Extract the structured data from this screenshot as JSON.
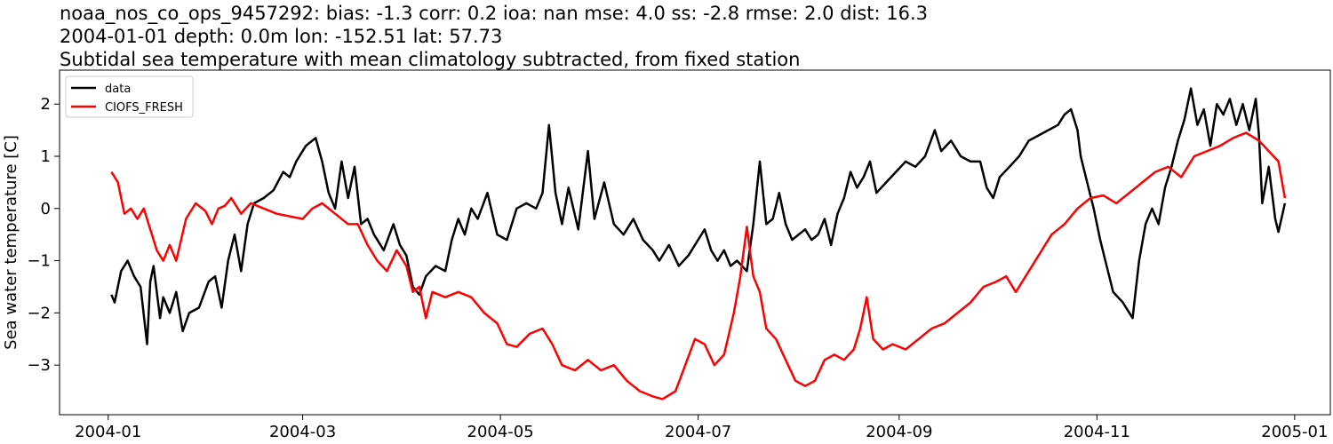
{
  "chart_data": {
    "type": "line",
    "title_lines": [
      "noaa_nos_co_ops_9457292: bias: -1.3  corr: 0.2  ioa: nan  mse: 4.0  ss: -2.8  rmse: 2.0  dist: 16.3",
      "2004-01-01 depth: 0.0m lon: -152.51 lat: 57.73",
      "Subtidal sea temperature with mean climatology subtracted, from fixed station"
    ],
    "xlabel": "",
    "ylabel": "Sea water temperature [C]",
    "xlim": [
      "2003-12-17",
      "2005-01-12"
    ],
    "ylim": [
      -3.95,
      2.65
    ],
    "xticks": [
      "2004-01",
      "2004-03",
      "2004-05",
      "2004-07",
      "2004-09",
      "2004-11",
      "2005-01"
    ],
    "yticks": [
      2,
      1,
      0,
      -1,
      -2,
      -3
    ],
    "ytick_labels": [
      "2",
      "1",
      "0",
      "−1",
      "−2",
      "−3"
    ],
    "legend_position": "top-left",
    "grid": false,
    "series": [
      {
        "name": "data",
        "color": "#000000",
        "points": [
          [
            "2004-01-02",
            -1.65
          ],
          [
            "2004-01-03",
            -1.8
          ],
          [
            "2004-01-05",
            -1.2
          ],
          [
            "2004-01-07",
            -1.0
          ],
          [
            "2004-01-09",
            -1.3
          ],
          [
            "2004-01-11",
            -1.5
          ],
          [
            "2004-01-13",
            -2.6
          ],
          [
            "2004-01-14",
            -1.4
          ],
          [
            "2004-01-15",
            -1.1
          ],
          [
            "2004-01-17",
            -2.1
          ],
          [
            "2004-01-18",
            -1.7
          ],
          [
            "2004-01-20",
            -2.0
          ],
          [
            "2004-01-22",
            -1.6
          ],
          [
            "2004-01-24",
            -2.35
          ],
          [
            "2004-01-26",
            -2.0
          ],
          [
            "2004-01-29",
            -1.9
          ],
          [
            "2004-02-01",
            -1.4
          ],
          [
            "2004-02-03",
            -1.3
          ],
          [
            "2004-02-05",
            -1.9
          ],
          [
            "2004-02-07",
            -1.0
          ],
          [
            "2004-02-09",
            -0.5
          ],
          [
            "2004-02-11",
            -1.2
          ],
          [
            "2004-02-13",
            -0.3
          ],
          [
            "2004-02-15",
            0.1
          ],
          [
            "2004-02-18",
            0.2
          ],
          [
            "2004-02-21",
            0.35
          ],
          [
            "2004-02-24",
            0.7
          ],
          [
            "2004-02-26",
            0.6
          ],
          [
            "2004-02-28",
            0.9
          ],
          [
            "2004-03-02",
            1.2
          ],
          [
            "2004-03-05",
            1.35
          ],
          [
            "2004-03-07",
            0.9
          ],
          [
            "2004-03-09",
            0.3
          ],
          [
            "2004-03-11",
            0.0
          ],
          [
            "2004-03-13",
            0.9
          ],
          [
            "2004-03-15",
            0.2
          ],
          [
            "2004-03-17",
            0.8
          ],
          [
            "2004-03-19",
            -0.3
          ],
          [
            "2004-03-21",
            -0.2
          ],
          [
            "2004-03-23",
            -0.5
          ],
          [
            "2004-03-26",
            -0.8
          ],
          [
            "2004-03-29",
            -0.3
          ],
          [
            "2004-03-31",
            -0.7
          ],
          [
            "2004-04-02",
            -0.9
          ],
          [
            "2004-04-04",
            -1.5
          ],
          [
            "2004-04-06",
            -1.65
          ],
          [
            "2004-04-08",
            -1.3
          ],
          [
            "2004-04-11",
            -1.1
          ],
          [
            "2004-04-14",
            -1.2
          ],
          [
            "2004-04-16",
            -0.6
          ],
          [
            "2004-04-18",
            -0.2
          ],
          [
            "2004-04-20",
            -0.5
          ],
          [
            "2004-04-22",
            0.0
          ],
          [
            "2004-04-24",
            -0.2
          ],
          [
            "2004-04-27",
            0.3
          ],
          [
            "2004-04-30",
            -0.5
          ],
          [
            "2004-05-03",
            -0.6
          ],
          [
            "2004-05-06",
            0.0
          ],
          [
            "2004-05-09",
            0.1
          ],
          [
            "2004-05-12",
            0.0
          ],
          [
            "2004-05-14",
            0.3
          ],
          [
            "2004-05-16",
            1.6
          ],
          [
            "2004-05-18",
            0.3
          ],
          [
            "2004-05-20",
            -0.3
          ],
          [
            "2004-05-22",
            0.4
          ],
          [
            "2004-05-25",
            -0.4
          ],
          [
            "2004-05-28",
            1.1
          ],
          [
            "2004-05-30",
            -0.2
          ],
          [
            "2004-06-02",
            0.5
          ],
          [
            "2004-06-05",
            -0.3
          ],
          [
            "2004-06-08",
            -0.5
          ],
          [
            "2004-06-11",
            -0.2
          ],
          [
            "2004-06-14",
            -0.6
          ],
          [
            "2004-06-17",
            -0.8
          ],
          [
            "2004-06-19",
            -1.0
          ],
          [
            "2004-06-22",
            -0.7
          ],
          [
            "2004-06-25",
            -1.1
          ],
          [
            "2004-06-28",
            -0.9
          ],
          [
            "2004-07-01",
            -0.6
          ],
          [
            "2004-07-03",
            -0.4
          ],
          [
            "2004-07-05",
            -0.8
          ],
          [
            "2004-07-07",
            -1.0
          ],
          [
            "2004-07-09",
            -0.8
          ],
          [
            "2004-07-11",
            -1.1
          ],
          [
            "2004-07-13",
            -1.0
          ],
          [
            "2004-07-16",
            -1.2
          ],
          [
            "2004-07-18",
            -0.3
          ],
          [
            "2004-07-20",
            0.9
          ],
          [
            "2004-07-22",
            -0.3
          ],
          [
            "2004-07-24",
            -0.2
          ],
          [
            "2004-07-26",
            0.3
          ],
          [
            "2004-07-28",
            -0.3
          ],
          [
            "2004-07-30",
            -0.6
          ],
          [
            "2004-08-01",
            -0.5
          ],
          [
            "2004-08-03",
            -0.4
          ],
          [
            "2004-08-05",
            -0.6
          ],
          [
            "2004-08-07",
            -0.5
          ],
          [
            "2004-08-09",
            -0.2
          ],
          [
            "2004-08-11",
            -0.7
          ],
          [
            "2004-08-13",
            -0.1
          ],
          [
            "2004-08-15",
            0.2
          ],
          [
            "2004-08-17",
            0.7
          ],
          [
            "2004-08-19",
            0.4
          ],
          [
            "2004-08-21",
            0.6
          ],
          [
            "2004-08-23",
            0.9
          ],
          [
            "2004-08-25",
            0.3
          ],
          [
            "2004-08-28",
            0.5
          ],
          [
            "2004-08-31",
            0.7
          ],
          [
            "2004-09-03",
            0.9
          ],
          [
            "2004-09-06",
            0.8
          ],
          [
            "2004-09-09",
            1.0
          ],
          [
            "2004-09-12",
            1.5
          ],
          [
            "2004-09-14",
            1.1
          ],
          [
            "2004-09-17",
            1.3
          ],
          [
            "2004-09-20",
            1.0
          ],
          [
            "2004-09-23",
            0.9
          ],
          [
            "2004-09-26",
            0.9
          ],
          [
            "2004-09-28",
            0.4
          ],
          [
            "2004-09-30",
            0.2
          ],
          [
            "2004-10-02",
            0.6
          ],
          [
            "2004-10-05",
            0.8
          ],
          [
            "2004-10-08",
            1.0
          ],
          [
            "2004-10-11",
            1.3
          ],
          [
            "2004-10-14",
            1.4
          ],
          [
            "2004-10-17",
            1.5
          ],
          [
            "2004-10-20",
            1.6
          ],
          [
            "2004-10-22",
            1.8
          ],
          [
            "2004-10-24",
            1.9
          ],
          [
            "2004-10-26",
            1.5
          ],
          [
            "2004-10-27",
            1.0
          ],
          [
            "2004-10-29",
            0.5
          ],
          [
            "2004-10-31",
            0.0
          ],
          [
            "2004-11-02",
            -0.6
          ],
          [
            "2004-11-04",
            -1.1
          ],
          [
            "2004-11-06",
            -1.6
          ],
          [
            "2004-11-09",
            -1.8
          ],
          [
            "2004-11-12",
            -2.1
          ],
          [
            "2004-11-14",
            -1.0
          ],
          [
            "2004-11-16",
            -0.3
          ],
          [
            "2004-11-18",
            0.0
          ],
          [
            "2004-11-20",
            -0.3
          ],
          [
            "2004-11-22",
            0.4
          ],
          [
            "2004-11-24",
            0.8
          ],
          [
            "2004-11-26",
            1.3
          ],
          [
            "2004-11-28",
            1.7
          ],
          [
            "2004-11-30",
            2.3
          ],
          [
            "2004-12-02",
            1.6
          ],
          [
            "2004-12-04",
            1.9
          ],
          [
            "2004-12-06",
            1.2
          ],
          [
            "2004-12-08",
            2.0
          ],
          [
            "2004-12-10",
            1.8
          ],
          [
            "2004-12-12",
            2.1
          ],
          [
            "2004-12-14",
            1.6
          ],
          [
            "2004-12-16",
            2.0
          ],
          [
            "2004-12-18",
            1.5
          ],
          [
            "2004-12-20",
            2.1
          ],
          [
            "2004-12-21",
            1.4
          ],
          [
            "2004-12-22",
            0.1
          ],
          [
            "2004-12-24",
            0.8
          ],
          [
            "2004-12-26",
            -0.2
          ],
          [
            "2004-12-27",
            -0.45
          ],
          [
            "2004-12-29",
            0.1
          ]
        ]
      },
      {
        "name": "CIOFS_FRESH",
        "color": "#ff0000",
        "points": [
          [
            "2004-01-02",
            0.7
          ],
          [
            "2004-01-04",
            0.5
          ],
          [
            "2004-01-06",
            -0.1
          ],
          [
            "2004-01-08",
            0.0
          ],
          [
            "2004-01-10",
            -0.2
          ],
          [
            "2004-01-12",
            0.0
          ],
          [
            "2004-01-14",
            -0.4
          ],
          [
            "2004-01-16",
            -0.8
          ],
          [
            "2004-01-18",
            -1.0
          ],
          [
            "2004-01-20",
            -0.7
          ],
          [
            "2004-01-22",
            -1.0
          ],
          [
            "2004-01-25",
            -0.2
          ],
          [
            "2004-01-28",
            0.1
          ],
          [
            "2004-01-31",
            -0.05
          ],
          [
            "2004-02-02",
            -0.3
          ],
          [
            "2004-02-04",
            0.0
          ],
          [
            "2004-02-06",
            0.05
          ],
          [
            "2004-02-08",
            0.2
          ],
          [
            "2004-02-11",
            -0.1
          ],
          [
            "2004-02-14",
            0.1
          ],
          [
            "2004-02-18",
            0.0
          ],
          [
            "2004-02-22",
            -0.1
          ],
          [
            "2004-02-26",
            -0.15
          ],
          [
            "2004-03-01",
            -0.2
          ],
          [
            "2004-03-04",
            0.0
          ],
          [
            "2004-03-07",
            0.1
          ],
          [
            "2004-03-11",
            -0.1
          ],
          [
            "2004-03-15",
            -0.3
          ],
          [
            "2004-03-18",
            -0.3
          ],
          [
            "2004-03-21",
            -0.7
          ],
          [
            "2004-03-24",
            -1.0
          ],
          [
            "2004-03-27",
            -1.2
          ],
          [
            "2004-03-30",
            -0.8
          ],
          [
            "2004-04-02",
            -1.1
          ],
          [
            "2004-04-04",
            -1.6
          ],
          [
            "2004-04-06",
            -1.5
          ],
          [
            "2004-04-08",
            -2.1
          ],
          [
            "2004-04-10",
            -1.6
          ],
          [
            "2004-04-14",
            -1.7
          ],
          [
            "2004-04-18",
            -1.6
          ],
          [
            "2004-04-22",
            -1.7
          ],
          [
            "2004-04-26",
            -2.0
          ],
          [
            "2004-04-30",
            -2.2
          ],
          [
            "2004-05-03",
            -2.6
          ],
          [
            "2004-05-06",
            -2.65
          ],
          [
            "2004-05-10",
            -2.4
          ],
          [
            "2004-05-14",
            -2.3
          ],
          [
            "2004-05-17",
            -2.6
          ],
          [
            "2004-05-20",
            -3.0
          ],
          [
            "2004-05-24",
            -3.1
          ],
          [
            "2004-05-28",
            -2.9
          ],
          [
            "2004-06-01",
            -3.1
          ],
          [
            "2004-06-05",
            -3.0
          ],
          [
            "2004-06-09",
            -3.3
          ],
          [
            "2004-06-13",
            -3.5
          ],
          [
            "2004-06-17",
            -3.6
          ],
          [
            "2004-06-20",
            -3.65
          ],
          [
            "2004-06-24",
            -3.5
          ],
          [
            "2004-06-27",
            -3.0
          ],
          [
            "2004-06-30",
            -2.5
          ],
          [
            "2004-07-03",
            -2.6
          ],
          [
            "2004-07-06",
            -3.0
          ],
          [
            "2004-07-09",
            -2.8
          ],
          [
            "2004-07-12",
            -2.0
          ],
          [
            "2004-07-14",
            -1.3
          ],
          [
            "2004-07-16",
            -0.35
          ],
          [
            "2004-07-18",
            -1.3
          ],
          [
            "2004-07-20",
            -1.6
          ],
          [
            "2004-07-22",
            -2.3
          ],
          [
            "2004-07-25",
            -2.5
          ],
          [
            "2004-07-28",
            -2.9
          ],
          [
            "2004-07-31",
            -3.3
          ],
          [
            "2004-08-03",
            -3.4
          ],
          [
            "2004-08-06",
            -3.3
          ],
          [
            "2004-08-09",
            -2.9
          ],
          [
            "2004-08-12",
            -2.8
          ],
          [
            "2004-08-15",
            -2.9
          ],
          [
            "2004-08-18",
            -2.7
          ],
          [
            "2004-08-20",
            -2.3
          ],
          [
            "2004-08-22",
            -1.7
          ],
          [
            "2004-08-24",
            -2.5
          ],
          [
            "2004-08-27",
            -2.7
          ],
          [
            "2004-08-30",
            -2.6
          ],
          [
            "2004-09-03",
            -2.7
          ],
          [
            "2004-09-07",
            -2.5
          ],
          [
            "2004-09-11",
            -2.3
          ],
          [
            "2004-09-15",
            -2.2
          ],
          [
            "2004-09-19",
            -2.0
          ],
          [
            "2004-09-23",
            -1.8
          ],
          [
            "2004-09-27",
            -1.5
          ],
          [
            "2004-10-01",
            -1.4
          ],
          [
            "2004-10-04",
            -1.3
          ],
          [
            "2004-10-07",
            -1.6
          ],
          [
            "2004-10-10",
            -1.3
          ],
          [
            "2004-10-14",
            -0.9
          ],
          [
            "2004-10-18",
            -0.5
          ],
          [
            "2004-10-22",
            -0.3
          ],
          [
            "2004-10-26",
            0.0
          ],
          [
            "2004-10-30",
            0.2
          ],
          [
            "2004-11-03",
            0.25
          ],
          [
            "2004-11-07",
            0.1
          ],
          [
            "2004-11-11",
            0.3
          ],
          [
            "2004-11-15",
            0.5
          ],
          [
            "2004-11-19",
            0.7
          ],
          [
            "2004-11-23",
            0.8
          ],
          [
            "2004-11-27",
            0.6
          ],
          [
            "2004-12-01",
            1.0
          ],
          [
            "2004-12-05",
            1.1
          ],
          [
            "2004-12-09",
            1.2
          ],
          [
            "2004-12-13",
            1.35
          ],
          [
            "2004-12-17",
            1.45
          ],
          [
            "2004-12-21",
            1.3
          ],
          [
            "2004-12-24",
            1.1
          ],
          [
            "2004-12-27",
            0.9
          ],
          [
            "2004-12-29",
            0.2
          ]
        ]
      }
    ]
  }
}
